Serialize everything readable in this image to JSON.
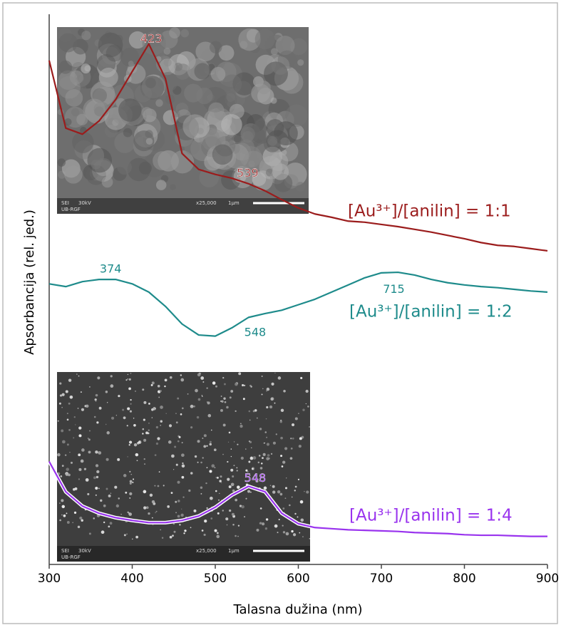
{
  "chart_data": {
    "type": "line",
    "xlabel": "Talasna dužina (nm)",
    "ylabel": "Apsorbancija (rel. jed.)",
    "xlim": [
      300,
      900
    ],
    "xticks": [
      300,
      400,
      500,
      600,
      700,
      800,
      900
    ],
    "ylim": [
      0,
      100
    ],
    "x": [
      300,
      320,
      340,
      360,
      380,
      400,
      420,
      440,
      460,
      480,
      500,
      520,
      540,
      560,
      580,
      600,
      620,
      640,
      660,
      680,
      700,
      720,
      740,
      760,
      780,
      800,
      820,
      840,
      860,
      880,
      900
    ],
    "series": [
      {
        "name": "[Au³⁺]/[anilin] = 1:1",
        "color": "#9b1c1c",
        "values": [
          91.6,
          79.3,
          78.2,
          80.6,
          84.5,
          89.6,
          94.6,
          88.3,
          74.7,
          71.8,
          70.9,
          70.2,
          69.2,
          67.9,
          66.3,
          64.8,
          63.7,
          63.1,
          62.4,
          62.2,
          61.8,
          61.4,
          60.9,
          60.4,
          59.8,
          59.2,
          58.5,
          58.0,
          57.8,
          57.4,
          57.0
        ],
        "peaks": [
          423,
          539
        ]
      },
      {
        "name": "[Au³⁺]/[anilin] = 1:2",
        "color": "#1e8b8b",
        "values": [
          51.0,
          50.5,
          51.4,
          51.8,
          51.8,
          51.0,
          49.5,
          46.9,
          43.7,
          41.7,
          41.5,
          43.0,
          44.9,
          45.6,
          46.2,
          47.2,
          48.2,
          49.5,
          50.8,
          52.1,
          53.0,
          53.1,
          52.6,
          51.8,
          51.2,
          50.8,
          50.5,
          50.3,
          50.0,
          49.7,
          49.5
        ],
        "peaks": [
          374,
          548,
          715
        ]
      },
      {
        "name": "[Au³⁺]/[anilin] = 1:4",
        "color": "#9933ee",
        "values": [
          18.7,
          13.2,
          10.6,
          9.3,
          8.5,
          8.0,
          7.6,
          7.6,
          8.0,
          8.8,
          10.4,
          12.6,
          14.2,
          13.2,
          9.3,
          7.4,
          6.7,
          6.5,
          6.3,
          6.2,
          6.1,
          6.0,
          5.8,
          5.7,
          5.6,
          5.4,
          5.3,
          5.3,
          5.2,
          5.1,
          5.1
        ],
        "peaks": [
          548
        ]
      }
    ],
    "insets": [
      {
        "texts": [
          "SEI",
          "30kV",
          "x25,000",
          "1μm",
          "UB-RGF"
        ]
      },
      {
        "texts": [
          "SEI",
          "30kV",
          "x25,000",
          "1μm",
          "UB-RGF"
        ]
      }
    ]
  }
}
